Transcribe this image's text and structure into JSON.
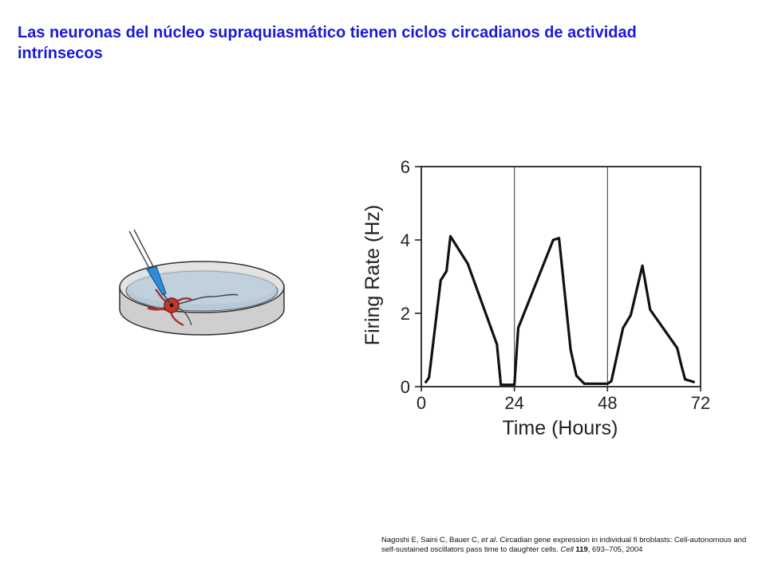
{
  "title": "Las neuronas del núcleo supraquiasmático tienen ciclos circadianos de actividad intrínsecos",
  "illustration": {
    "icon": "petri-dish-neuron-electrode-icon"
  },
  "citation": {
    "authors": "Nagoshi E, Saini C, Bauer C,",
    "etal": "et al",
    "text_after_etal": ". Circadian gene expression in individual fi broblasts: Cell-autonomous and self-sustained oscillators pass time to daughter cells.",
    "journal": "Cell",
    "volume": "119",
    "pages": ", 693–705, 2004"
  },
  "chart_data": {
    "type": "line",
    "title": "",
    "xlabel": "Time (Hours)",
    "ylabel": "Firing Rate (Hz)",
    "xlim": [
      0,
      72
    ],
    "ylim": [
      0,
      6
    ],
    "xticks": [
      0,
      24,
      48,
      72
    ],
    "yticks": [
      0,
      2,
      4,
      6
    ],
    "vertical_lines": [
      24,
      48
    ],
    "grid": false,
    "series": [
      {
        "color": "#111111",
        "x": [
          1,
          2,
          5,
          6.5,
          7.5,
          12,
          19.5,
          20.5,
          23,
          24,
          25,
          34,
          35.5,
          38.5,
          40,
          42,
          48,
          49,
          52,
          54,
          57,
          59,
          66,
          67,
          68,
          70.5
        ],
        "y": [
          0.1,
          0.25,
          2.9,
          3.15,
          4.1,
          3.35,
          1.15,
          0.05,
          0.05,
          0.05,
          1.6,
          4.0,
          4.05,
          1.0,
          0.3,
          0.08,
          0.08,
          0.15,
          1.6,
          1.95,
          3.3,
          2.1,
          1.05,
          0.6,
          0.2,
          0.12
        ]
      }
    ]
  }
}
